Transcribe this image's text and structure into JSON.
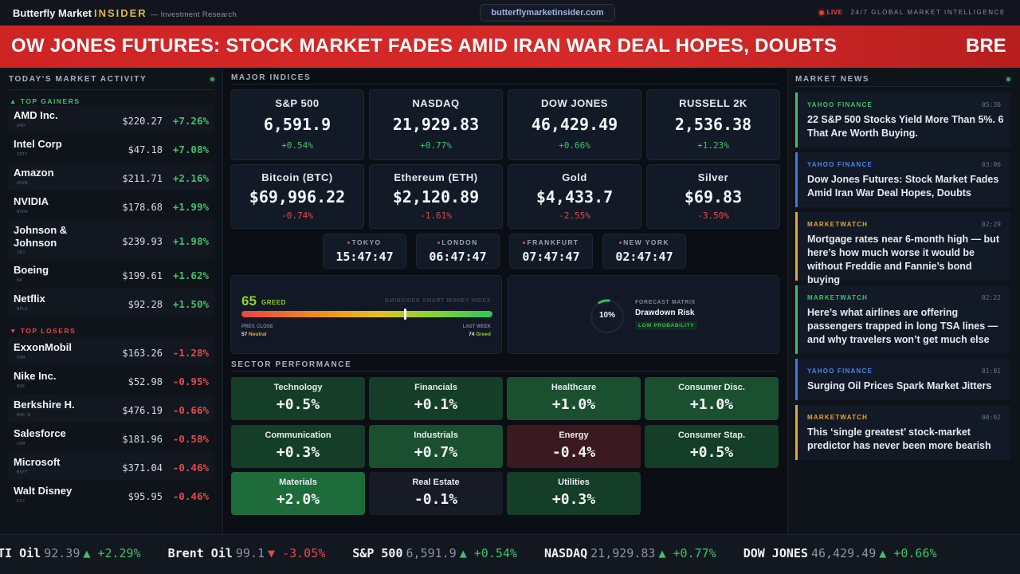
{
  "header": {
    "brand_main": "Butterfly Market",
    "brand_accent": "INSIDER",
    "brand_sub": "— Investment Research",
    "url": "butterflymarketinsider.com",
    "live_label": "LIVE",
    "tagline": "24/7 GLOBAL MARKET INTELLIGENCE"
  },
  "breaking": {
    "headline": "OW JONES FUTURES: STOCK MARKET FADES AMID IRAN WAR DEAL HOPES, DOUBTS",
    "next_fragment": "BRE"
  },
  "market_activity": {
    "title": "TODAY'S MARKET ACTIVITY",
    "gainers_label": "▲ TOP GAINERS",
    "losers_label": "▼ TOP LOSERS",
    "gainers": [
      {
        "name": "AMD Inc.",
        "ticker": "AMD",
        "price": "$220.27",
        "change": "+7.26%"
      },
      {
        "name": "Intel Corp",
        "ticker": "INTC",
        "price": "$47.18",
        "change": "+7.08%"
      },
      {
        "name": "Amazon",
        "ticker": "AMZN",
        "price": "$211.71",
        "change": "+2.16%"
      },
      {
        "name": "NVIDIA",
        "ticker": "NVDA",
        "price": "$178.68",
        "change": "+1.99%"
      },
      {
        "name": "Johnson & Johnson",
        "ticker": "JNJ",
        "price": "$239.93",
        "change": "+1.98%"
      },
      {
        "name": "Boeing",
        "ticker": "BA",
        "price": "$199.61",
        "change": "+1.62%"
      },
      {
        "name": "Netflix",
        "ticker": "NFLX",
        "price": "$92.28",
        "change": "+1.50%"
      }
    ],
    "losers": [
      {
        "name": "ExxonMobil",
        "ticker": "XOM",
        "price": "$163.26",
        "change": "-1.28%"
      },
      {
        "name": "Nike Inc.",
        "ticker": "NKE",
        "price": "$52.98",
        "change": "-0.95%"
      },
      {
        "name": "Berkshire H.",
        "ticker": "BRK-B",
        "price": "$476.19",
        "change": "-0.66%"
      },
      {
        "name": "Salesforce",
        "ticker": "CRM",
        "price": "$181.96",
        "change": "-0.58%"
      },
      {
        "name": "Microsoft",
        "ticker": "MSFT",
        "price": "$371.04",
        "change": "-0.46%"
      },
      {
        "name": "Walt Disney",
        "ticker": "DIS",
        "price": "$95.95",
        "change": "-0.46%"
      }
    ]
  },
  "indices": {
    "title": "MAJOR INDICES",
    "cards": [
      {
        "name": "S&P 500",
        "value": "6,591.9",
        "change": "+0.54%",
        "dir": "up"
      },
      {
        "name": "NASDAQ",
        "value": "21,929.83",
        "change": "+0.77%",
        "dir": "up"
      },
      {
        "name": "DOW JONES",
        "value": "46,429.49",
        "change": "+0.66%",
        "dir": "up"
      },
      {
        "name": "RUSSELL 2K",
        "value": "2,536.38",
        "change": "+1.23%",
        "dir": "up"
      },
      {
        "name": "Bitcoin (BTC)",
        "value": "$69,996.22",
        "change": "-0.74%",
        "dir": "down"
      },
      {
        "name": "Ethereum (ETH)",
        "value": "$2,120.89",
        "change": "-1.61%",
        "dir": "down"
      },
      {
        "name": "Gold",
        "value": "$4,433.7",
        "change": "-2.55%",
        "dir": "down"
      },
      {
        "name": "Silver",
        "value": "$69.83",
        "change": "-3.50%",
        "dir": "down"
      }
    ]
  },
  "clocks": [
    {
      "city": "TOKYO",
      "time": "15:47:47"
    },
    {
      "city": "LONDON",
      "time": "06:47:47"
    },
    {
      "city": "FRANKFURT",
      "time": "07:47:47"
    },
    {
      "city": "NEW YORK",
      "time": "02:47:47"
    }
  ],
  "smart_money": {
    "score": "65",
    "score_value": 65,
    "label": "GREED",
    "title": "BMINSIDER SMART MONEY INDEX",
    "prev_label": "PREV. CLOSE",
    "prev_value": "57",
    "prev_state": "Neutral",
    "week_label": "LAST WEEK",
    "week_value": "74",
    "week_state": "Greed"
  },
  "forecast": {
    "percent": "10%",
    "percent_value": 10,
    "kicker": "FORECAST MATRIX",
    "title": "Drawdown Risk",
    "badge": "LOW PROBABILITY"
  },
  "sectors": {
    "title": "SECTOR PERFORMANCE",
    "items": [
      {
        "name": "Technology",
        "change": "+0.5%",
        "value": 0.5
      },
      {
        "name": "Financials",
        "change": "+0.1%",
        "value": 0.1
      },
      {
        "name": "Healthcare",
        "change": "+1.0%",
        "value": 1.0
      },
      {
        "name": "Consumer Disc.",
        "change": "+1.0%",
        "value": 1.0
      },
      {
        "name": "Communication",
        "change": "+0.3%",
        "value": 0.3
      },
      {
        "name": "Industrials",
        "change": "+0.7%",
        "value": 0.7
      },
      {
        "name": "Energy",
        "change": "-0.4%",
        "value": -0.4
      },
      {
        "name": "Consumer Stap.",
        "change": "+0.5%",
        "value": 0.5
      },
      {
        "name": "Materials",
        "change": "+2.0%",
        "value": 2.0
      },
      {
        "name": "Real Estate",
        "change": "-0.1%",
        "value": -0.1
      },
      {
        "name": "Utilities",
        "change": "+0.3%",
        "value": 0.3
      }
    ]
  },
  "news": {
    "title": "MARKET NEWS",
    "items": [
      {
        "source": "YAHOO FINANCE",
        "time": "05:30",
        "headline": "22 S&P 500 Stocks Yield More Than 5%. 6 That Are Worth Buying.",
        "accent": "#3ec26a"
      },
      {
        "source": "YAHOO FINANCE",
        "time": "03:06",
        "headline": "Dow Jones Futures: Stock Market Fades Amid Iran War Deal Hopes, Doubts",
        "accent": "#3d7be0"
      },
      {
        "source": "MARKETWATCH",
        "time": "02:29",
        "headline": "Mortgage rates near 6-month high — but here’s how much worse it would be without Freddie and Fannie’s bond buying",
        "accent": "#e8a530"
      },
      {
        "source": "MARKETWATCH",
        "time": "02:22",
        "headline": "Here’s what airlines are offering passengers trapped in long TSA lines — and why travelers won’t get much else",
        "accent": "#3ec26a"
      },
      {
        "source": "YAHOO FINANCE",
        "time": "01:01",
        "headline": "Surging Oil Prices Spark Market Jitters",
        "accent": "#3d7be0"
      },
      {
        "source": "MARKETWATCH",
        "time": "00:02",
        "headline": "This ‘single greatest’ stock-market predictor has never been more bearish",
        "accent": "#e8a530"
      }
    ]
  },
  "ticker": [
    {
      "name": "WTI Oil",
      "value": "92.39",
      "arrow": "▲",
      "change": "+2.29%",
      "dir": "up"
    },
    {
      "name": "Brent Oil",
      "value": "99.1",
      "arrow": "▼",
      "change": "-3.05%",
      "dir": "down"
    },
    {
      "name": "S&P 500",
      "value": "6,591.9",
      "arrow": "▲",
      "change": "+0.54%",
      "dir": "up"
    },
    {
      "name": "NASDAQ",
      "value": "21,929.83",
      "arrow": "▲",
      "change": "+0.77%",
      "dir": "up"
    },
    {
      "name": "DOW JONES",
      "value": "46,429.49",
      "arrow": "▲",
      "change": "+0.66%",
      "dir": "up"
    }
  ]
}
